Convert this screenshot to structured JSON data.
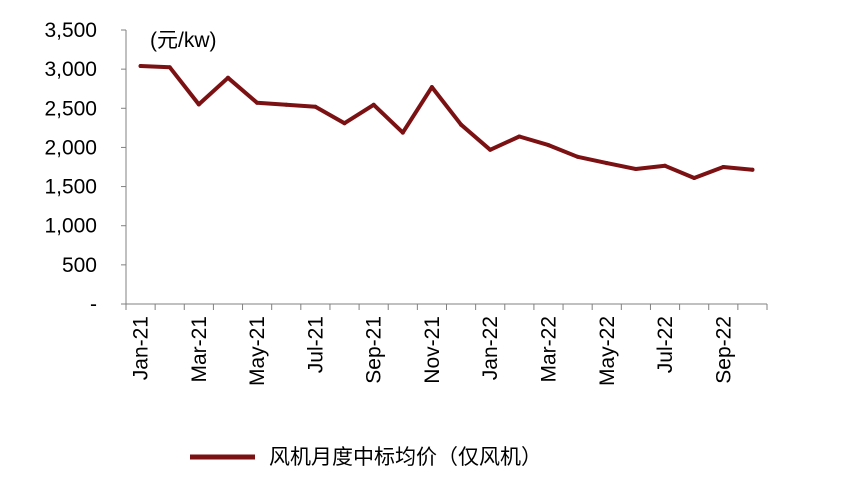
{
  "chart_data": {
    "type": "line",
    "unit_label": "(元/kw)",
    "y_tick_labels": [
      "-",
      "500",
      "1,000",
      "1,500",
      "2,000",
      "2,500",
      "3,000",
      "3,500"
    ],
    "ylim": [
      0,
      3500
    ],
    "x_tick_labels": [
      "Jan-21",
      "Mar-21",
      "May-21",
      "Jul-21",
      "Sep-21",
      "Nov-21",
      "Jan-22",
      "Mar-22",
      "May-22",
      "Jul-22",
      "Sep-22"
    ],
    "x": [
      "Jan-21",
      "Feb-21",
      "Mar-21",
      "Apr-21",
      "May-21",
      "Jun-21",
      "Jul-21",
      "Aug-21",
      "Sep-21",
      "Oct-21",
      "Nov-21",
      "Dec-21",
      "Jan-22",
      "Feb-22",
      "Mar-22",
      "Apr-22",
      "May-22",
      "Jun-22",
      "Jul-22",
      "Aug-22",
      "Sep-22",
      "Oct-22"
    ],
    "series": [
      {
        "name": "风机月度中标均价（仅风机）",
        "color": "#7b1113",
        "values": [
          3040,
          3025,
          2550,
          2890,
          2570,
          2545,
          2520,
          2310,
          2545,
          2190,
          2770,
          2290,
          1970,
          2140,
          2030,
          1880,
          1800,
          1725,
          1765,
          1610,
          1750,
          1715
        ]
      }
    ],
    "grid": false,
    "legend_position": "bottom"
  }
}
